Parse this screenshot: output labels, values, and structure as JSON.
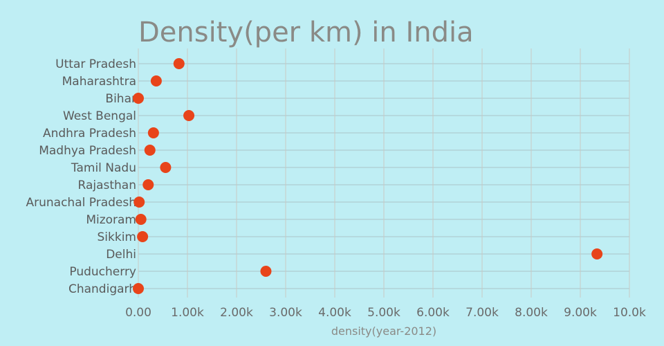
{
  "chart_data": {
    "type": "scatter",
    "title": "Density(per km) in India",
    "xlabel": "density(year-2012)",
    "ylabel": "",
    "xlim": [
      0,
      10000
    ],
    "xticks": [
      0,
      1000,
      2000,
      3000,
      4000,
      5000,
      6000,
      7000,
      8000,
      9000,
      10000
    ],
    "xtick_labels": [
      "0.00",
      "1.00k",
      "2.00k",
      "3.00k",
      "4.00k",
      "5.00k",
      "6.00k",
      "7.00k",
      "8.00k",
      "9.00k",
      "10.0k"
    ],
    "categories": [
      "Uttar Pradesh",
      "Maharashtra",
      "Bihar",
      "West Bengal",
      "Andhra Pradesh",
      "Madhya Pradesh",
      "Tamil Nadu",
      "Rajasthan",
      "Arunachal Pradesh",
      "Mizoram",
      "Sikkim",
      "Delhi",
      "Puducherry",
      "Chandigarh"
    ],
    "values": [
      828,
      365,
      0,
      1029,
      308,
      236,
      555,
      201,
      17,
      52,
      86,
      9340,
      2598,
      0
    ],
    "grid": true,
    "marker_color": "#e8441a"
  }
}
